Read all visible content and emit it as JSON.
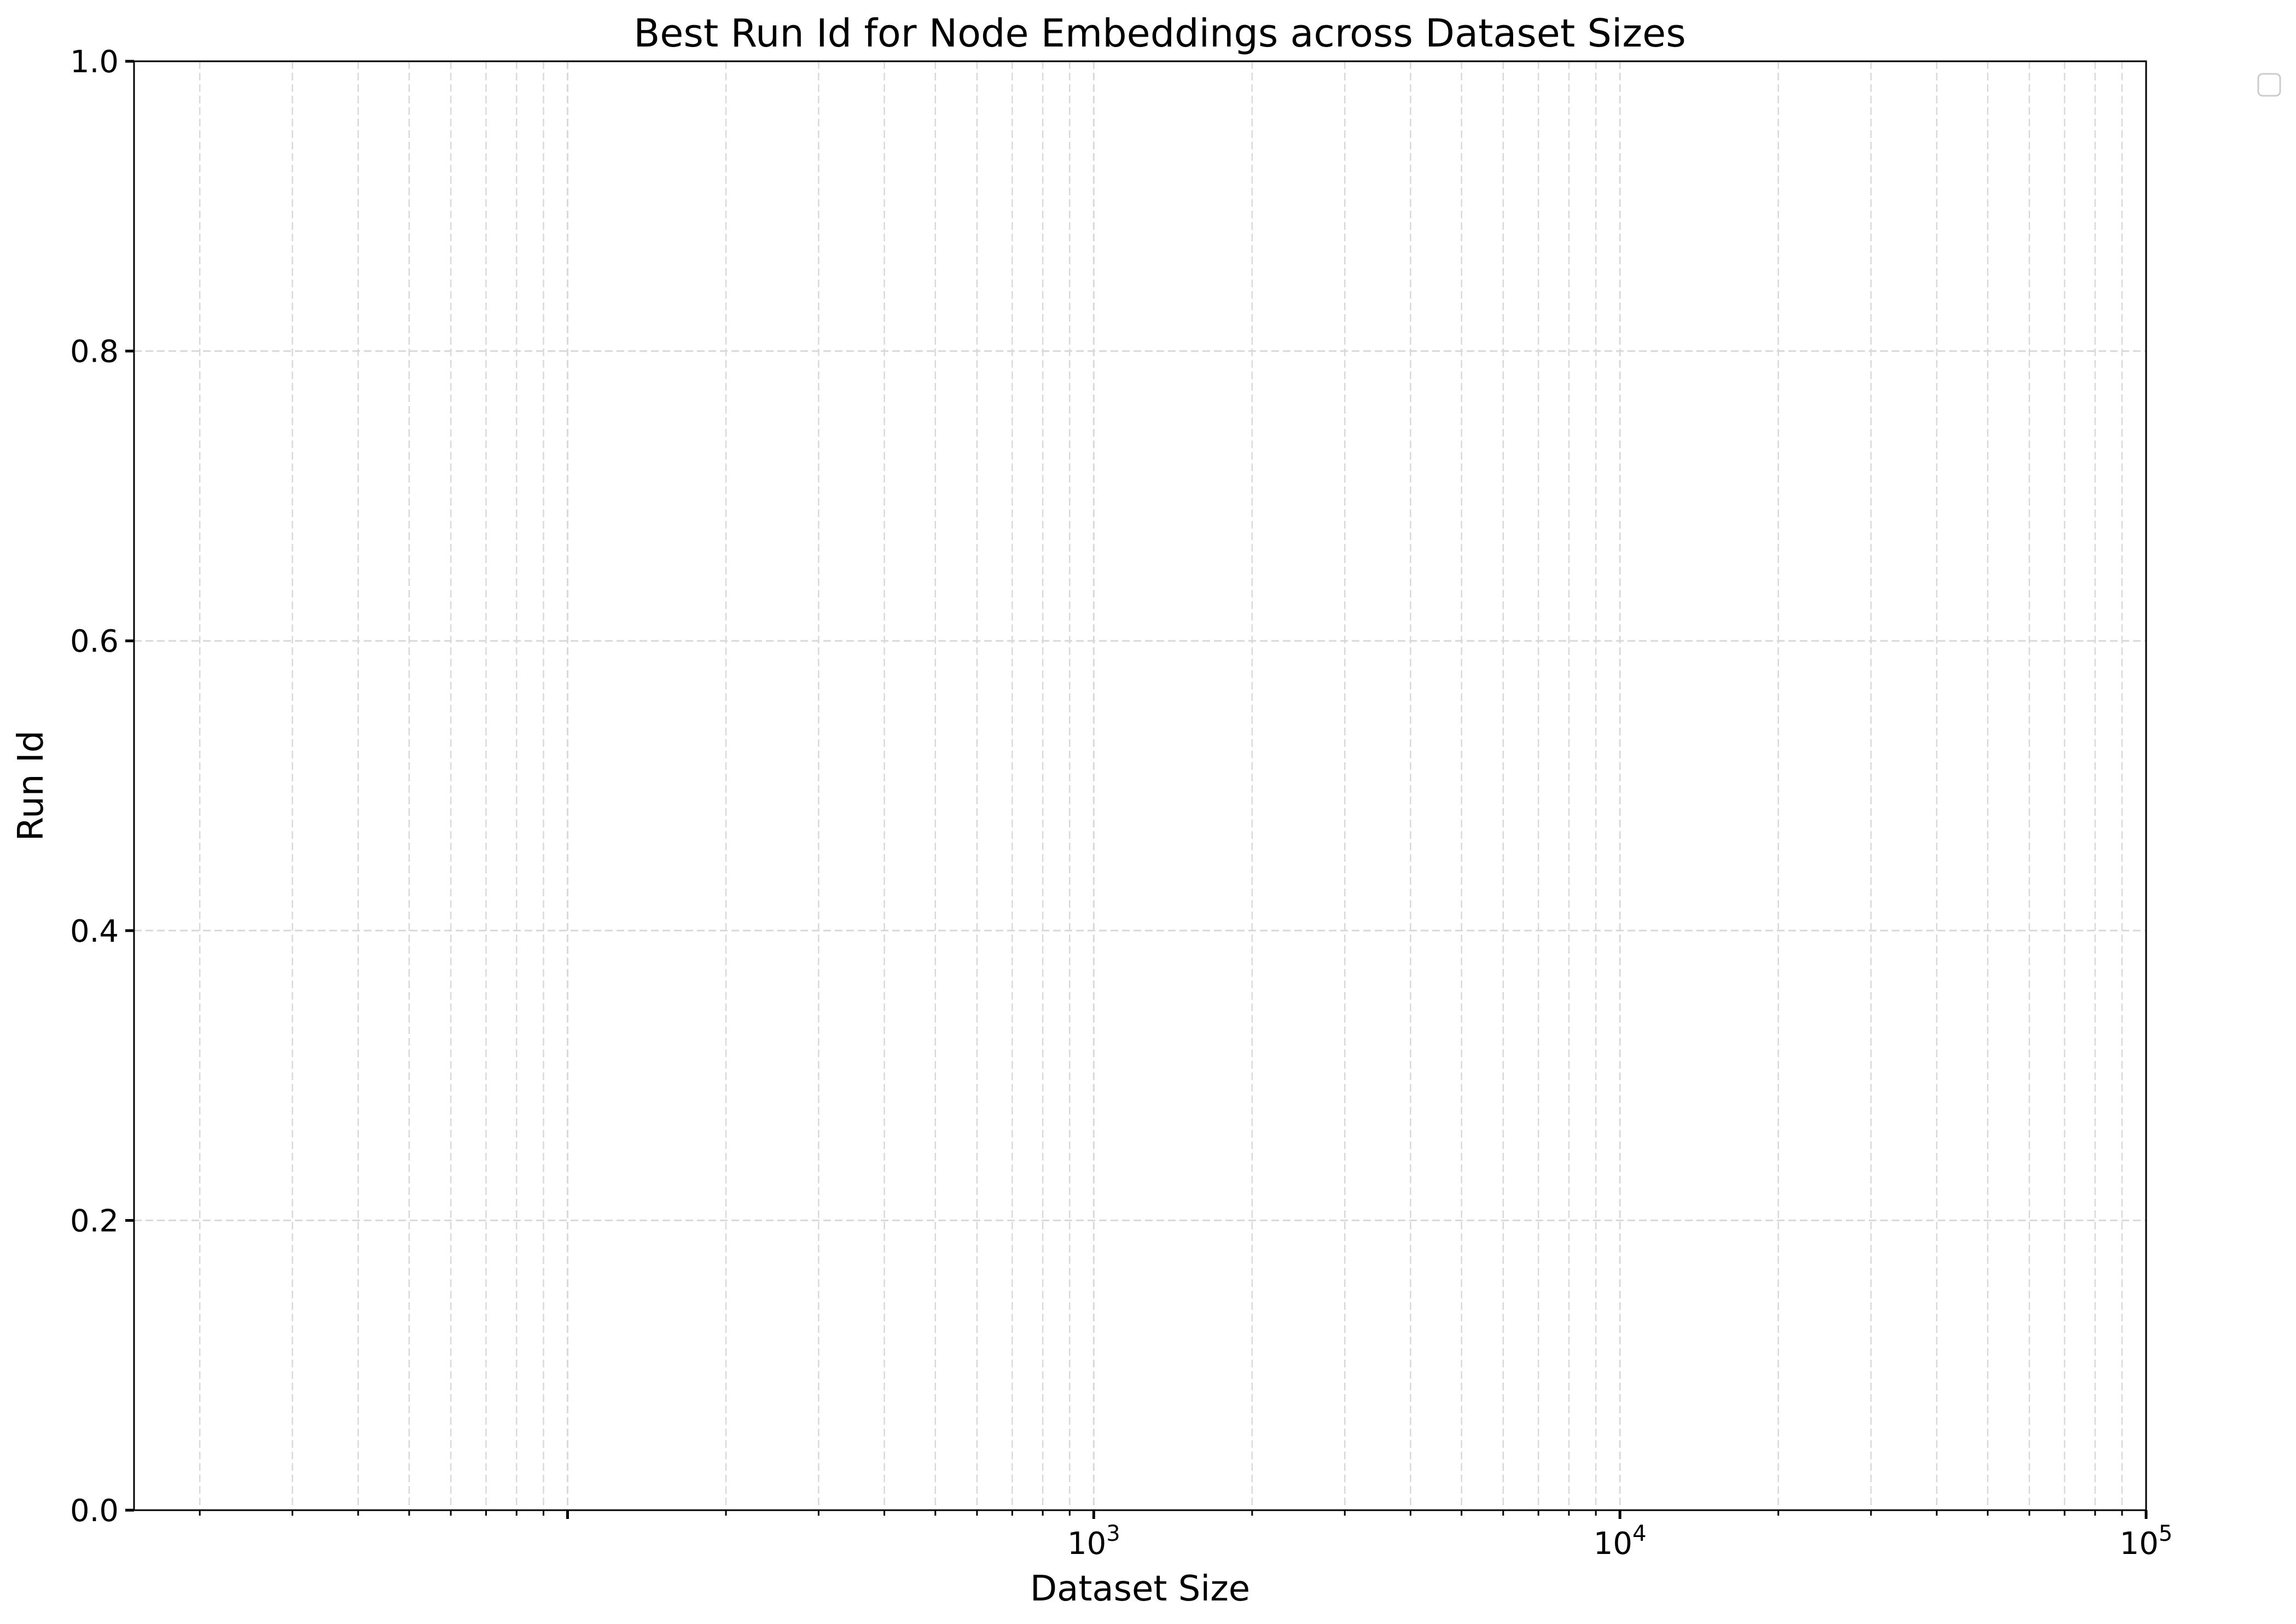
{
  "chart_data": {
    "type": "scatter",
    "title": "Best Run Id for Node Embeddings across Dataset Sizes",
    "xlabel": "Dataset Size",
    "ylabel": "Run Id",
    "xscale": "log",
    "xlim": [
      15,
      100000
    ],
    "ylim": [
      0.0,
      1.0
    ],
    "x_major_ticks": [
      1000,
      10000,
      100000
    ],
    "x_major_tick_labels": [
      {
        "base": "10",
        "exp": "3"
      },
      {
        "base": "10",
        "exp": "4"
      },
      {
        "base": "10",
        "exp": "5"
      }
    ],
    "y_ticks": [
      0.0,
      0.2,
      0.4,
      0.6,
      0.8,
      1.0
    ],
    "y_tick_labels": [
      "0.0",
      "0.2",
      "0.4",
      "0.6",
      "0.8",
      "1.0"
    ],
    "grid": true,
    "legend": {
      "placement": "outside-top-right",
      "entries": []
    },
    "series": []
  },
  "colors": {
    "grid": "#d9d9d9",
    "axes": "#000000",
    "background": "#ffffff"
  }
}
